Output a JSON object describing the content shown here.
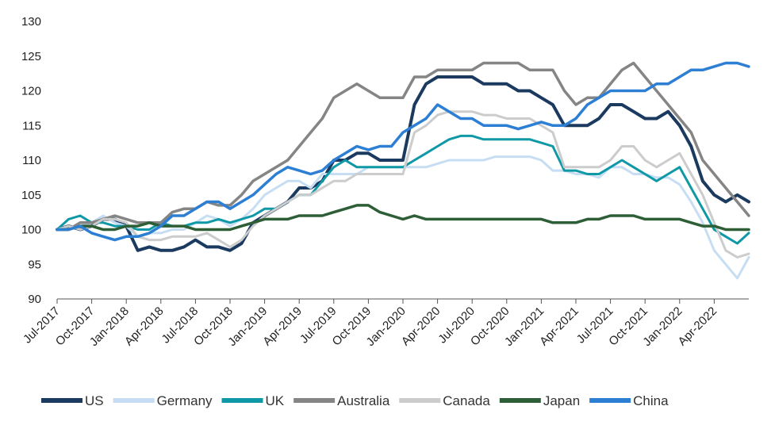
{
  "chart_data": {
    "type": "line",
    "title": "",
    "xlabel": "",
    "ylabel": "",
    "ylim": [
      90,
      130
    ],
    "yticks": [
      90,
      95,
      100,
      105,
      110,
      115,
      120,
      125,
      130
    ],
    "xlim": [
      "2017-07",
      "2022-07"
    ],
    "xticks": [
      "Jul-2017",
      "Oct-2017",
      "Jan-2018",
      "Apr-2018",
      "Jul-2018",
      "Oct-2018",
      "Jan-2019",
      "Apr-2019",
      "Jul-2019",
      "Oct-2019",
      "Jan-2020",
      "Apr-2020",
      "Jul-2020",
      "Oct-2020",
      "Jan-2021",
      "Apr-2021",
      "Jul-2021",
      "Oct-2021",
      "Jan-2022",
      "Apr-2022"
    ],
    "grid": false,
    "legend": "bottom",
    "x": [
      "2017-07",
      "2017-08",
      "2017-09",
      "2017-10",
      "2017-11",
      "2017-12",
      "2018-01",
      "2018-02",
      "2018-03",
      "2018-04",
      "2018-05",
      "2018-06",
      "2018-07",
      "2018-08",
      "2018-09",
      "2018-10",
      "2018-11",
      "2018-12",
      "2019-01",
      "2019-02",
      "2019-03",
      "2019-04",
      "2019-05",
      "2019-06",
      "2019-07",
      "2019-08",
      "2019-09",
      "2019-10",
      "2019-11",
      "2019-12",
      "2020-01",
      "2020-02",
      "2020-03",
      "2020-04",
      "2020-05",
      "2020-06",
      "2020-07",
      "2020-08",
      "2020-09",
      "2020-10",
      "2020-11",
      "2020-12",
      "2021-01",
      "2021-02",
      "2021-03",
      "2021-04",
      "2021-05",
      "2021-06",
      "2021-07",
      "2021-08",
      "2021-09",
      "2021-10",
      "2021-11",
      "2021-12",
      "2022-01",
      "2022-02",
      "2022-03",
      "2022-04",
      "2022-05",
      "2022-06",
      "2022-07"
    ],
    "series": [
      {
        "name": "US",
        "color": "#1b3a5f",
        "width": 4,
        "values": [
          100,
          100.5,
          100,
          100.5,
          101.5,
          101.5,
          100.5,
          97,
          97.5,
          97,
          97,
          97.5,
          98.5,
          97.5,
          97.5,
          97,
          98,
          101,
          102,
          103,
          104,
          106,
          106,
          107,
          110,
          110,
          111,
          111,
          110,
          110,
          110,
          118,
          121,
          122,
          122,
          122,
          122,
          121,
          121,
          121,
          120,
          120,
          119,
          118,
          115,
          115,
          115,
          116,
          118,
          118,
          117,
          116,
          116,
          117,
          115,
          112,
          107,
          105,
          104,
          105,
          104
        ]
      },
      {
        "name": "Germany",
        "color": "#c6ddf3",
        "width": 3,
        "values": [
          100,
          100,
          100.5,
          101,
          102,
          101,
          100.5,
          99,
          99.5,
          99.5,
          100,
          100,
          101,
          102,
          101.5,
          100.5,
          101.5,
          103,
          105,
          106,
          107,
          107,
          106,
          108,
          108,
          108,
          108,
          109,
          109,
          109,
          109,
          109,
          109,
          109.5,
          110,
          110,
          110,
          110,
          110.5,
          110.5,
          110.5,
          110.5,
          110,
          108.5,
          108.5,
          108,
          108,
          107.5,
          109,
          109,
          108,
          108,
          107.5,
          107.5,
          106.5,
          104,
          101,
          97,
          95,
          93,
          96
        ]
      },
      {
        "name": "UK",
        "color": "#0f98a6",
        "width": 3,
        "values": [
          100,
          101.5,
          102,
          101,
          101,
          100.5,
          100.5,
          100,
          100,
          101,
          100.5,
          100.5,
          101,
          101,
          101.5,
          101,
          101.5,
          102,
          103,
          103,
          104,
          105,
          105,
          107,
          109,
          110,
          109,
          109,
          109,
          109,
          109,
          110,
          111,
          112,
          113,
          113.5,
          113.5,
          113,
          113,
          113,
          113,
          113,
          112.5,
          112,
          108.5,
          108.5,
          108,
          108,
          109,
          110,
          109,
          108,
          107,
          108,
          109,
          106,
          103,
          100,
          99,
          98,
          99.5
        ]
      },
      {
        "name": "Australia",
        "color": "#858585",
        "width": 3.5,
        "values": [
          100,
          100,
          101,
          101,
          101.5,
          102,
          101.5,
          101,
          101,
          101,
          102.5,
          103,
          103,
          104,
          103.5,
          103.5,
          105,
          107,
          108,
          109,
          110,
          112,
          114,
          116,
          119,
          120,
          121,
          120,
          119,
          119,
          119,
          122,
          122,
          123,
          123,
          123,
          123,
          124,
          124,
          124,
          124,
          123,
          123,
          123,
          120,
          118,
          119,
          119,
          121,
          123,
          124,
          122,
          120,
          118,
          116,
          114,
          110,
          108,
          106,
          104,
          102
        ]
      },
      {
        "name": "Canada",
        "color": "#cccccc",
        "width": 3,
        "values": [
          100,
          100.5,
          100,
          100.5,
          101.5,
          101.5,
          101,
          99,
          98.5,
          98.5,
          99,
          99,
          99,
          99.5,
          98.5,
          97.5,
          98.5,
          100.5,
          102,
          103,
          104,
          105,
          105,
          106,
          107,
          107,
          108,
          108,
          108,
          108,
          108,
          114,
          115,
          116.5,
          117,
          117,
          117,
          116.5,
          116.5,
          116,
          116,
          116,
          115,
          114,
          109,
          109,
          109,
          109,
          110,
          112,
          112,
          110,
          109,
          110,
          111,
          108,
          105,
          101,
          97,
          96,
          96.5
        ]
      },
      {
        "name": "Japan",
        "color": "#2e5e36",
        "width": 3.5,
        "values": [
          100,
          100,
          100.5,
          100.5,
          100,
          100,
          100.5,
          100.5,
          101,
          100.5,
          100.5,
          100.5,
          100,
          100,
          100,
          100,
          100.5,
          101,
          101.5,
          101.5,
          101.5,
          102,
          102,
          102,
          102.5,
          103,
          103.5,
          103.5,
          102.5,
          102,
          101.5,
          102,
          101.5,
          101.5,
          101.5,
          101.5,
          101.5,
          101.5,
          101.5,
          101.5,
          101.5,
          101.5,
          101.5,
          101,
          101,
          101,
          101.5,
          101.5,
          102,
          102,
          102,
          101.5,
          101.5,
          101.5,
          101.5,
          101,
          100.5,
          100.5,
          100,
          100,
          100
        ]
      },
      {
        "name": "China",
        "color": "#2d7fd4",
        "width": 3.5,
        "values": [
          100,
          100,
          100.5,
          99.5,
          99,
          98.5,
          99,
          99,
          99.5,
          100.5,
          102,
          102,
          103,
          104,
          104,
          103,
          104,
          105,
          106.5,
          108,
          109,
          108.5,
          108,
          108.5,
          110,
          111,
          112,
          111.5,
          112,
          112,
          114,
          115,
          116,
          118,
          117,
          116,
          116,
          115,
          115,
          115,
          114.5,
          115,
          115.5,
          115,
          115,
          116,
          118,
          119,
          120,
          120,
          120,
          120,
          121,
          121,
          122,
          123,
          123,
          123.5,
          124,
          124,
          123.5
        ]
      }
    ]
  }
}
